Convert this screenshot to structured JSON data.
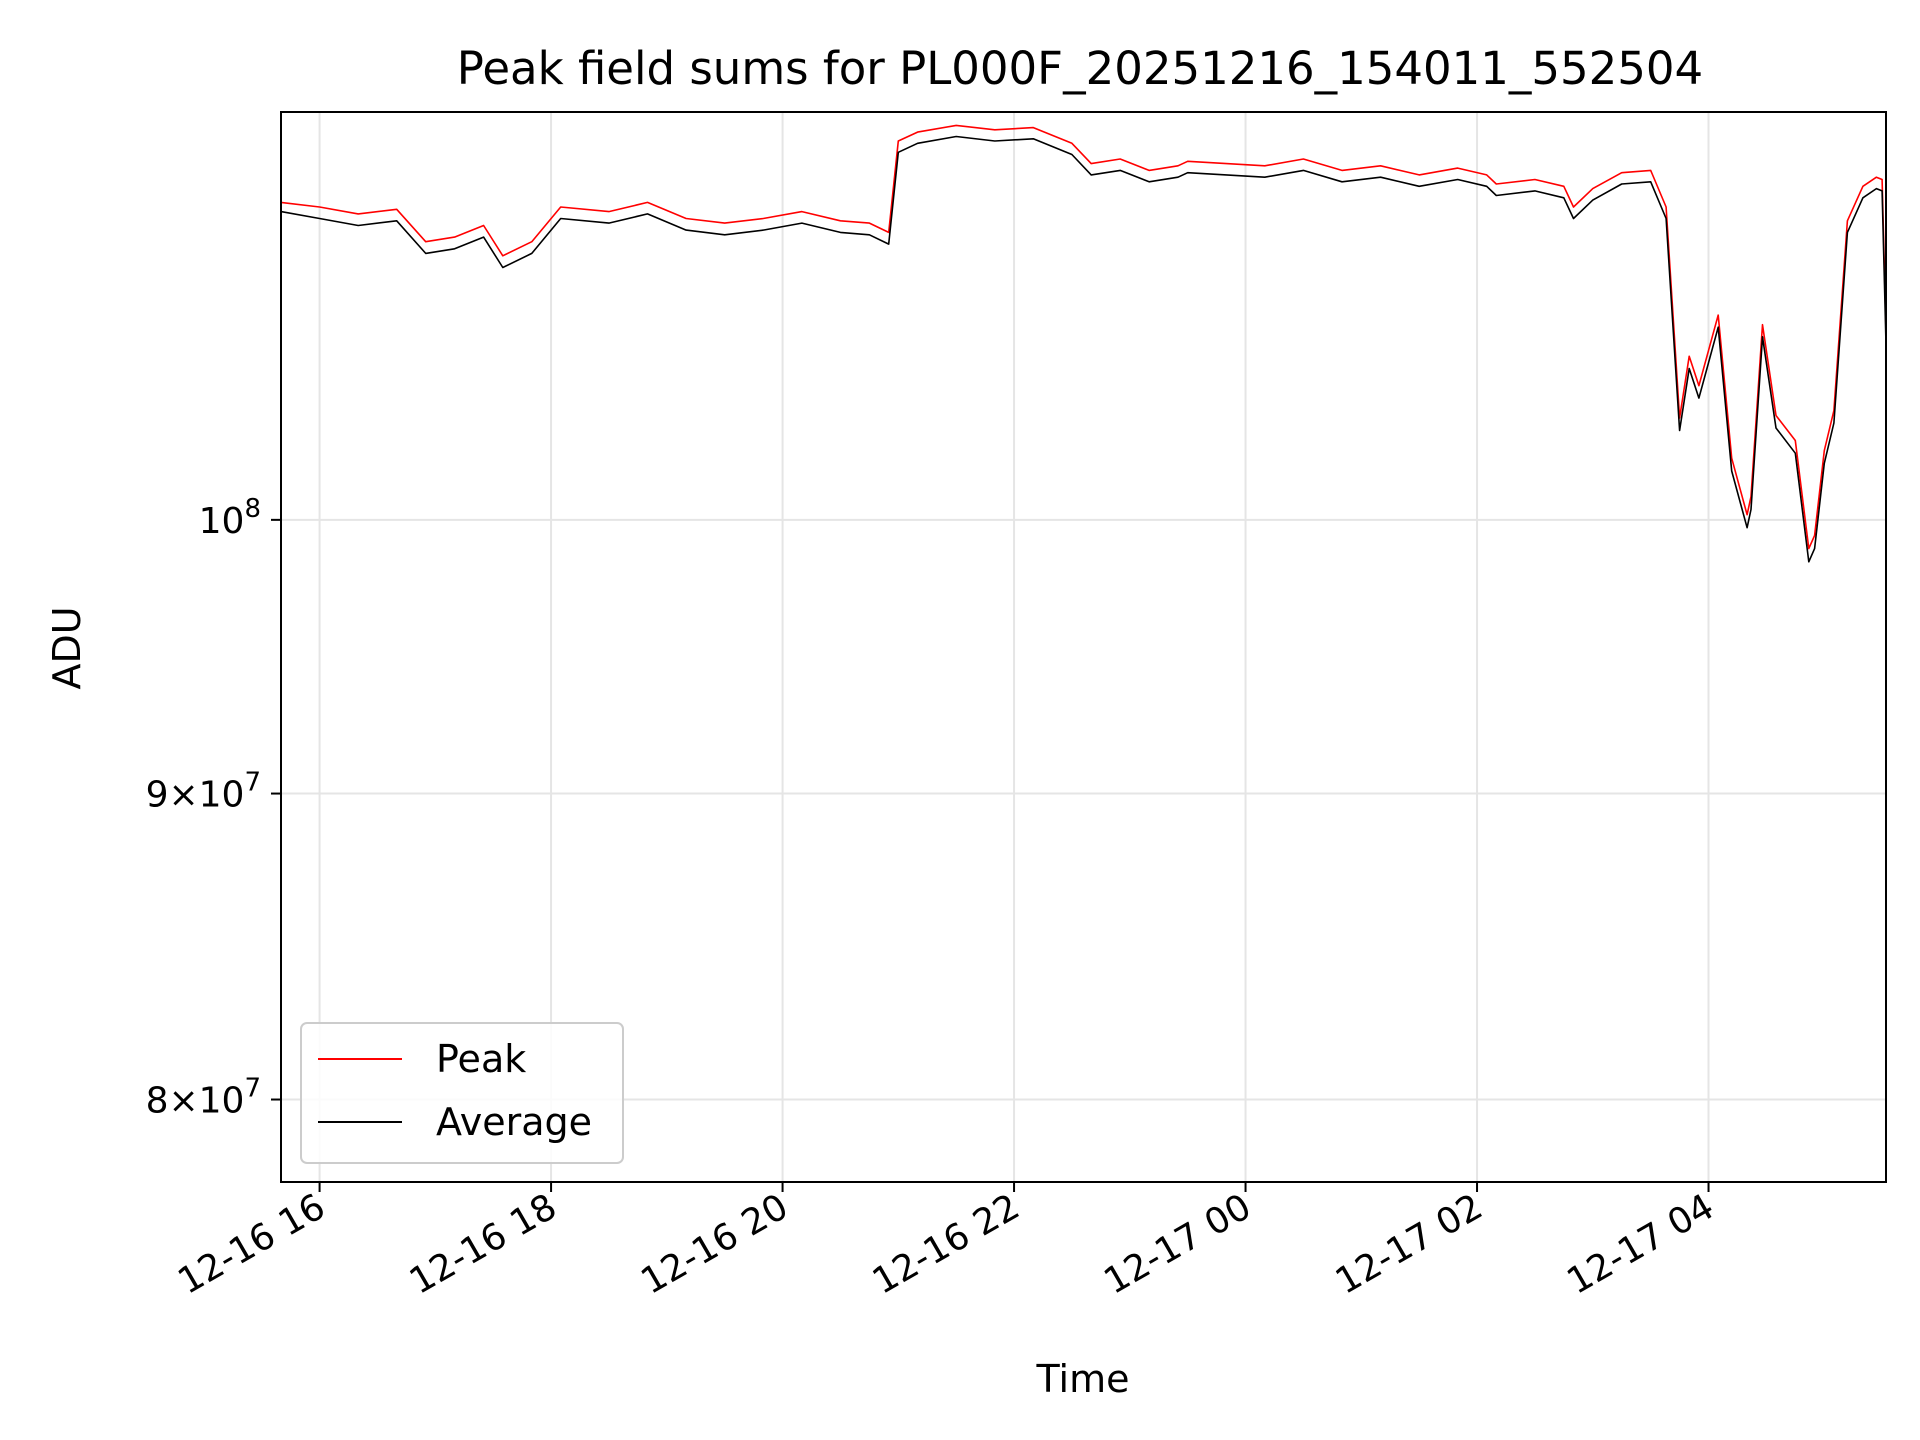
{
  "chart_data": {
    "type": "line",
    "title": "Peak field sums for PL000F_20251216_154011_552504",
    "xlabel": "Time",
    "ylabel": "ADU",
    "yscale": "log",
    "xlim": [
      "2025-12-16 15:40",
      "2025-12-17 05:32"
    ],
    "ylim": [
      77500000,
      117000000
    ],
    "x_ticks": [
      "12-16 16",
      "12-16 18",
      "12-16 20",
      "12-16 22",
      "12-17 00",
      "12-17 02",
      "12-17 04"
    ],
    "x_tick_times": [
      "2025-12-16 16:00",
      "2025-12-16 18:00",
      "2025-12-16 20:00",
      "2025-12-16 22:00",
      "2025-12-17 00:00",
      "2025-12-17 02:00",
      "2025-12-17 04:00"
    ],
    "y_ticks": [
      {
        "value": 80000000,
        "mantissa": "8",
        "base": "10",
        "exp": "7"
      },
      {
        "value": 90000000,
        "mantissa": "9",
        "base": "10",
        "exp": "7"
      },
      {
        "value": 100000000,
        "mantissa": "",
        "base": "10",
        "exp": "8"
      }
    ],
    "grid": true,
    "legend_position": "lower-left",
    "series": [
      {
        "name": "Peak",
        "color": "#ff0000",
        "x": [
          "2025-12-16 15:40",
          "2025-12-16 16:00",
          "2025-12-16 16:20",
          "2025-12-16 16:40",
          "2025-12-16 16:55",
          "2025-12-16 17:10",
          "2025-12-16 17:25",
          "2025-12-16 17:35",
          "2025-12-16 17:50",
          "2025-12-16 18:05",
          "2025-12-16 18:30",
          "2025-12-16 18:50",
          "2025-12-16 19:10",
          "2025-12-16 19:30",
          "2025-12-16 19:50",
          "2025-12-16 20:10",
          "2025-12-16 20:30",
          "2025-12-16 20:45",
          "2025-12-16 20:55",
          "2025-12-16 21:00",
          "2025-12-16 21:10",
          "2025-12-16 21:30",
          "2025-12-16 21:50",
          "2025-12-16 22:10",
          "2025-12-16 22:30",
          "2025-12-16 22:40",
          "2025-12-16 22:55",
          "2025-12-16 23:10",
          "2025-12-16 23:25",
          "2025-12-16 23:30",
          "2025-12-16 23:50",
          "2025-12-17 00:10",
          "2025-12-17 00:30",
          "2025-12-17 00:50",
          "2025-12-17 01:10",
          "2025-12-17 01:30",
          "2025-12-17 01:50",
          "2025-12-17 02:05",
          "2025-12-17 02:10",
          "2025-12-17 02:30",
          "2025-12-17 02:45",
          "2025-12-17 02:50",
          "2025-12-17 03:00",
          "2025-12-17 03:15",
          "2025-12-17 03:30",
          "2025-12-17 03:38",
          "2025-12-17 03:45",
          "2025-12-17 03:50",
          "2025-12-17 03:55",
          "2025-12-17 04:05",
          "2025-12-17 04:12",
          "2025-12-17 04:20",
          "2025-12-17 04:22",
          "2025-12-17 04:28",
          "2025-12-17 04:35",
          "2025-12-17 04:45",
          "2025-12-17 04:52",
          "2025-12-17 04:55",
          "2025-12-17 05:00",
          "2025-12-17 05:05",
          "2025-12-17 05:12",
          "2025-12-17 05:20",
          "2025-12-17 05:27",
          "2025-12-17 05:30",
          "2025-12-17 05:32"
        ],
        "values": [
          113000000,
          112800000,
          112500000,
          112700000,
          111300000,
          111500000,
          112000000,
          110700000,
          111300000,
          112800000,
          112600000,
          113000000,
          112300000,
          112100000,
          112300000,
          112600000,
          112200000,
          112100000,
          111700000,
          115700000,
          116100000,
          116400000,
          116200000,
          116300000,
          115600000,
          114700000,
          114900000,
          114400000,
          114600000,
          114800000,
          114700000,
          114600000,
          114900000,
          114400000,
          114600000,
          114200000,
          114500000,
          114200000,
          113800000,
          114000000,
          113700000,
          112800000,
          113600000,
          114300000,
          114400000,
          112800000,
          104000000,
          106500000,
          105300000,
          108200000,
          102400000,
          100200000,
          100900000,
          107800000,
          104100000,
          103100000,
          98900000,
          99400000,
          102700000,
          104300000,
          112200000,
          113700000,
          114100000,
          114000000,
          107500000
        ]
      },
      {
        "name": "Average",
        "color": "#000000",
        "x": [
          "2025-12-16 15:40",
          "2025-12-16 16:00",
          "2025-12-16 16:20",
          "2025-12-16 16:40",
          "2025-12-16 16:55",
          "2025-12-16 17:10",
          "2025-12-16 17:25",
          "2025-12-16 17:35",
          "2025-12-16 17:50",
          "2025-12-16 18:05",
          "2025-12-16 18:30",
          "2025-12-16 18:50",
          "2025-12-16 19:10",
          "2025-12-16 19:30",
          "2025-12-16 19:50",
          "2025-12-16 20:10",
          "2025-12-16 20:30",
          "2025-12-16 20:45",
          "2025-12-16 20:55",
          "2025-12-16 21:00",
          "2025-12-16 21:10",
          "2025-12-16 21:30",
          "2025-12-16 21:50",
          "2025-12-16 22:10",
          "2025-12-16 22:30",
          "2025-12-16 22:40",
          "2025-12-16 22:55",
          "2025-12-16 23:10",
          "2025-12-16 23:25",
          "2025-12-16 23:30",
          "2025-12-16 23:50",
          "2025-12-17 00:10",
          "2025-12-17 00:30",
          "2025-12-17 00:50",
          "2025-12-17 01:10",
          "2025-12-17 01:30",
          "2025-12-17 01:50",
          "2025-12-17 02:05",
          "2025-12-17 02:10",
          "2025-12-17 02:30",
          "2025-12-17 02:45",
          "2025-12-17 02:50",
          "2025-12-17 03:00",
          "2025-12-17 03:15",
          "2025-12-17 03:30",
          "2025-12-17 03:38",
          "2025-12-17 03:45",
          "2025-12-17 03:50",
          "2025-12-17 03:55",
          "2025-12-17 04:05",
          "2025-12-17 04:12",
          "2025-12-17 04:20",
          "2025-12-17 04:22",
          "2025-12-17 04:28",
          "2025-12-17 04:35",
          "2025-12-17 04:45",
          "2025-12-17 04:52",
          "2025-12-17 04:55",
          "2025-12-17 05:00",
          "2025-12-17 05:05",
          "2025-12-17 05:12",
          "2025-12-17 05:20",
          "2025-12-17 05:27",
          "2025-12-17 05:30",
          "2025-12-17 05:32"
        ],
        "values": [
          112600000,
          112300000,
          112000000,
          112200000,
          110800000,
          111000000,
          111500000,
          110200000,
          110800000,
          112300000,
          112100000,
          112500000,
          111800000,
          111600000,
          111800000,
          112100000,
          111700000,
          111600000,
          111200000,
          115200000,
          115600000,
          115900000,
          115700000,
          115800000,
          115100000,
          114200000,
          114400000,
          113900000,
          114100000,
          114300000,
          114200000,
          114100000,
          114400000,
          113900000,
          114100000,
          113700000,
          114000000,
          113700000,
          113300000,
          113500000,
          113200000,
          112300000,
          113100000,
          113800000,
          113900000,
          112300000,
          103500000,
          106000000,
          104800000,
          107700000,
          101900000,
          99700000,
          100400000,
          107300000,
          103600000,
          102600000,
          98400000,
          98900000,
          102200000,
          103800000,
          111700000,
          113200000,
          113600000,
          113500000,
          107000000
        ]
      }
    ]
  }
}
